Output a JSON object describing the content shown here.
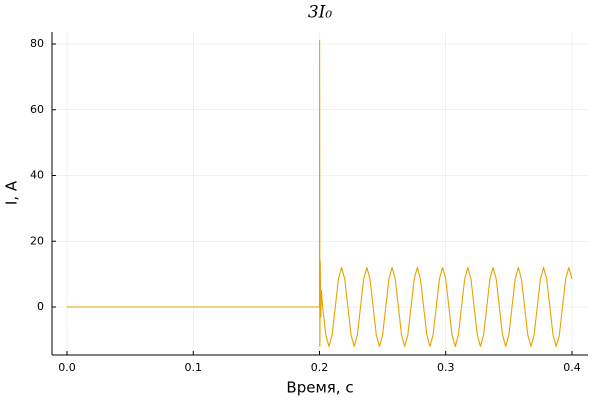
{
  "chart_data": {
    "type": "line",
    "title": "3I₀",
    "x_label": "Время, с",
    "y_label": "I, A",
    "series": [
      {
        "name": "3I₀",
        "color": "#e9a200",
        "x": [
          0,
          0.2,
          0.2001,
          0.2003,
          0.2006,
          0.201,
          0.2015,
          0.2025,
          0.205,
          0.2075,
          0.21,
          0.2125,
          0.215,
          0.2175,
          0.22,
          0.2225,
          0.225,
          0.2275,
          0.23,
          0.2325,
          0.235,
          0.2375,
          0.24,
          0.2425,
          0.245,
          0.2475,
          0.25,
          0.2525,
          0.255,
          0.2575,
          0.26,
          0.2625,
          0.265,
          0.2675,
          0.27,
          0.2725,
          0.275,
          0.2775,
          0.28,
          0.2825,
          0.285,
          0.2875,
          0.29,
          0.2925,
          0.295,
          0.2975,
          0.3,
          0.3025,
          0.305,
          0.3075,
          0.31,
          0.3125,
          0.315,
          0.3175,
          0.32,
          0.3225,
          0.325,
          0.3275,
          0.33,
          0.3325,
          0.335,
          0.3375,
          0.34,
          0.3425,
          0.345,
          0.3475,
          0.35,
          0.3525,
          0.355,
          0.3575,
          0.36,
          0.3625,
          0.365,
          0.3675,
          0.37,
          0.3725,
          0.375,
          0.3775,
          0.38,
          0.3825,
          0.385,
          0.3875,
          0.39,
          0.3925,
          0.395,
          0.3975,
          0.4
        ],
        "values": [
          0,
          0,
          81,
          -12,
          14,
          -3,
          5,
          0,
          -8.5,
          -12,
          -8.5,
          0,
          8.5,
          12,
          8.5,
          0,
          -8.5,
          -12,
          -8.5,
          0,
          8.5,
          12,
          8.5,
          0,
          -8.5,
          -12,
          -8.5,
          0,
          8.5,
          12,
          8.5,
          0,
          -8.5,
          -12,
          -8.5,
          0,
          8.5,
          12,
          8.5,
          0,
          -8.5,
          -12,
          -8.5,
          0,
          8.5,
          12,
          8.5,
          0,
          -8.5,
          -12,
          -8.5,
          0,
          8.5,
          12,
          8.5,
          0,
          -8.5,
          -12,
          -8.5,
          0,
          8.5,
          12,
          8.5,
          0,
          -8.5,
          -12,
          -8.5,
          0,
          8.5,
          12,
          8.5,
          0,
          -8.5,
          -12,
          -8.5,
          0,
          8.5,
          12,
          8.5,
          0,
          -8.5,
          -12,
          -8.5,
          0,
          8.5,
          12,
          8.5
        ]
      }
    ],
    "xlim": [
      -0.0119,
      0.4127
    ],
    "ylim": [
      -14.6,
      83.65
    ],
    "xticks": [
      {
        "value": 0,
        "label": "0.0"
      },
      0.1,
      0.2,
      0.3,
      0.4
    ],
    "yticks": [
      0,
      20,
      40,
      60,
      80
    ],
    "grid": true
  }
}
